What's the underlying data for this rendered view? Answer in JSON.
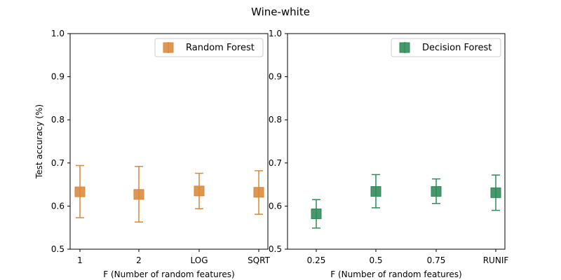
{
  "figure": {
    "suptitle": "Wine-white"
  },
  "colors": {
    "random_forest": "#D9893A",
    "decision_forest": "#2E8B57",
    "axis": "#000000"
  },
  "chart_data": [
    {
      "type": "scatter",
      "title": "",
      "xlabel": "F (Number of random features)",
      "ylabel": "Test accuracy (%)",
      "ylim": [
        0.5,
        1.0
      ],
      "yticks": [
        "0.5",
        "0.6",
        "0.7",
        "0.8",
        "0.9",
        "1.0"
      ],
      "categories": [
        "1",
        "2",
        "LOG",
        "SQRT"
      ],
      "legend": {
        "position": "top-right"
      },
      "series": [
        {
          "name": "Random Forest",
          "color": "#D9893A",
          "marker": "square",
          "values": [
            0.633,
            0.627,
            0.635,
            0.632
          ],
          "err_low": [
            0.573,
            0.563,
            0.594,
            0.581
          ],
          "err_high": [
            0.694,
            0.692,
            0.676,
            0.682
          ]
        }
      ]
    },
    {
      "type": "scatter",
      "title": "",
      "xlabel": "F (Number of random features)",
      "ylabel": "",
      "ylim": [
        0.5,
        1.0
      ],
      "yticks": [
        "0.5",
        "0.6",
        "0.7",
        "0.8",
        "0.9",
        "1.0"
      ],
      "categories": [
        "0.25",
        "0.5",
        "0.75",
        "RUNIF"
      ],
      "legend": {
        "position": "top-right"
      },
      "series": [
        {
          "name": "Decision Forest",
          "color": "#2E8B57",
          "marker": "square",
          "values": [
            0.582,
            0.634,
            0.634,
            0.631
          ],
          "err_low": [
            0.549,
            0.596,
            0.606,
            0.59
          ],
          "err_high": [
            0.615,
            0.673,
            0.663,
            0.672
          ]
        }
      ]
    }
  ]
}
